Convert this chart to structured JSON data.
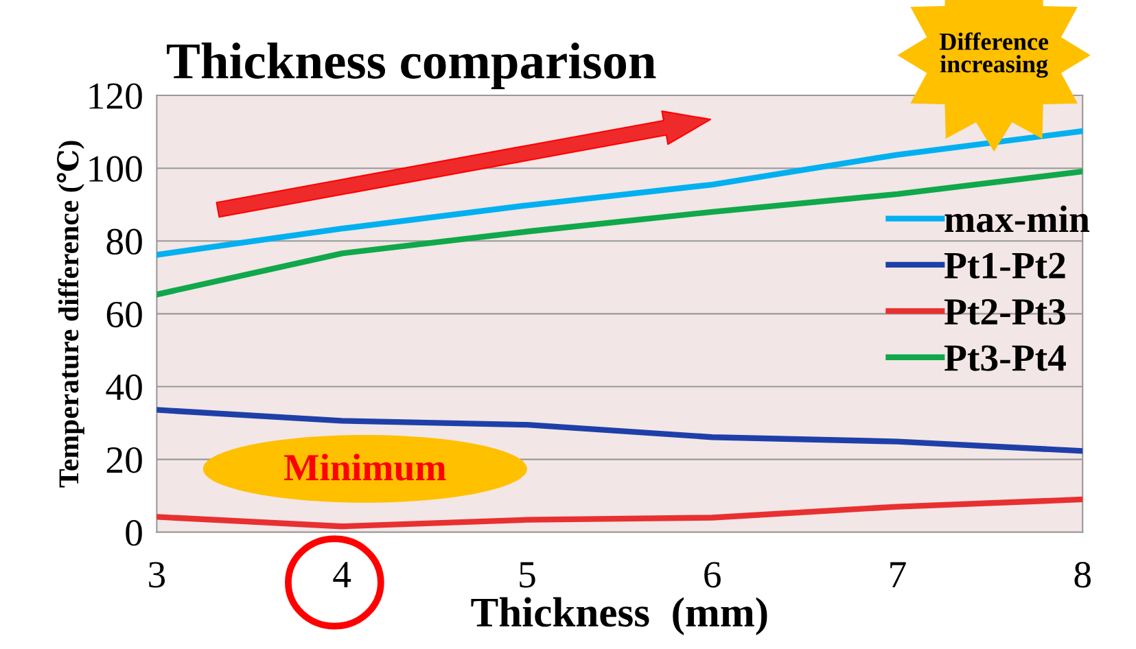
{
  "chart_data": {
    "type": "line",
    "title": "Thickness comparison",
    "xlabel": "Thickness  (mm)",
    "ylabel": "Temperature difference (℃)",
    "x": [
      3,
      4,
      5,
      6,
      7,
      8
    ],
    "series": [
      {
        "name": "max-min",
        "color": "#00b0f0",
        "values": [
          76.2,
          83.4,
          89.8,
          95.5,
          103.7,
          110.2
        ]
      },
      {
        "name": "Pt1-Pt2",
        "color": "#1f3fa8",
        "values": [
          33.6,
          30.6,
          29.5,
          26.1,
          24.9,
          22.3
        ]
      },
      {
        "name": "Pt2-Pt3",
        "color": "#e83030",
        "values": [
          4.2,
          1.6,
          3.4,
          4.0,
          7.0,
          9.0
        ]
      },
      {
        "name": "Pt3-Pt4",
        "color": "#10a84a",
        "values": [
          65.3,
          76.6,
          82.6,
          88.0,
          92.9,
          99.1
        ]
      }
    ],
    "xlim": [
      3,
      8
    ],
    "xticks": [
      3,
      4,
      5,
      6,
      7,
      8
    ],
    "ylim": [
      0,
      120
    ],
    "yticks": [
      0,
      20,
      40,
      60,
      80,
      100,
      120
    ],
    "grid": "y",
    "legend": "right",
    "marker": "none",
    "line_style": "solid",
    "annotations": [
      "Minimum",
      "Difference\nincreasing"
    ]
  }
}
